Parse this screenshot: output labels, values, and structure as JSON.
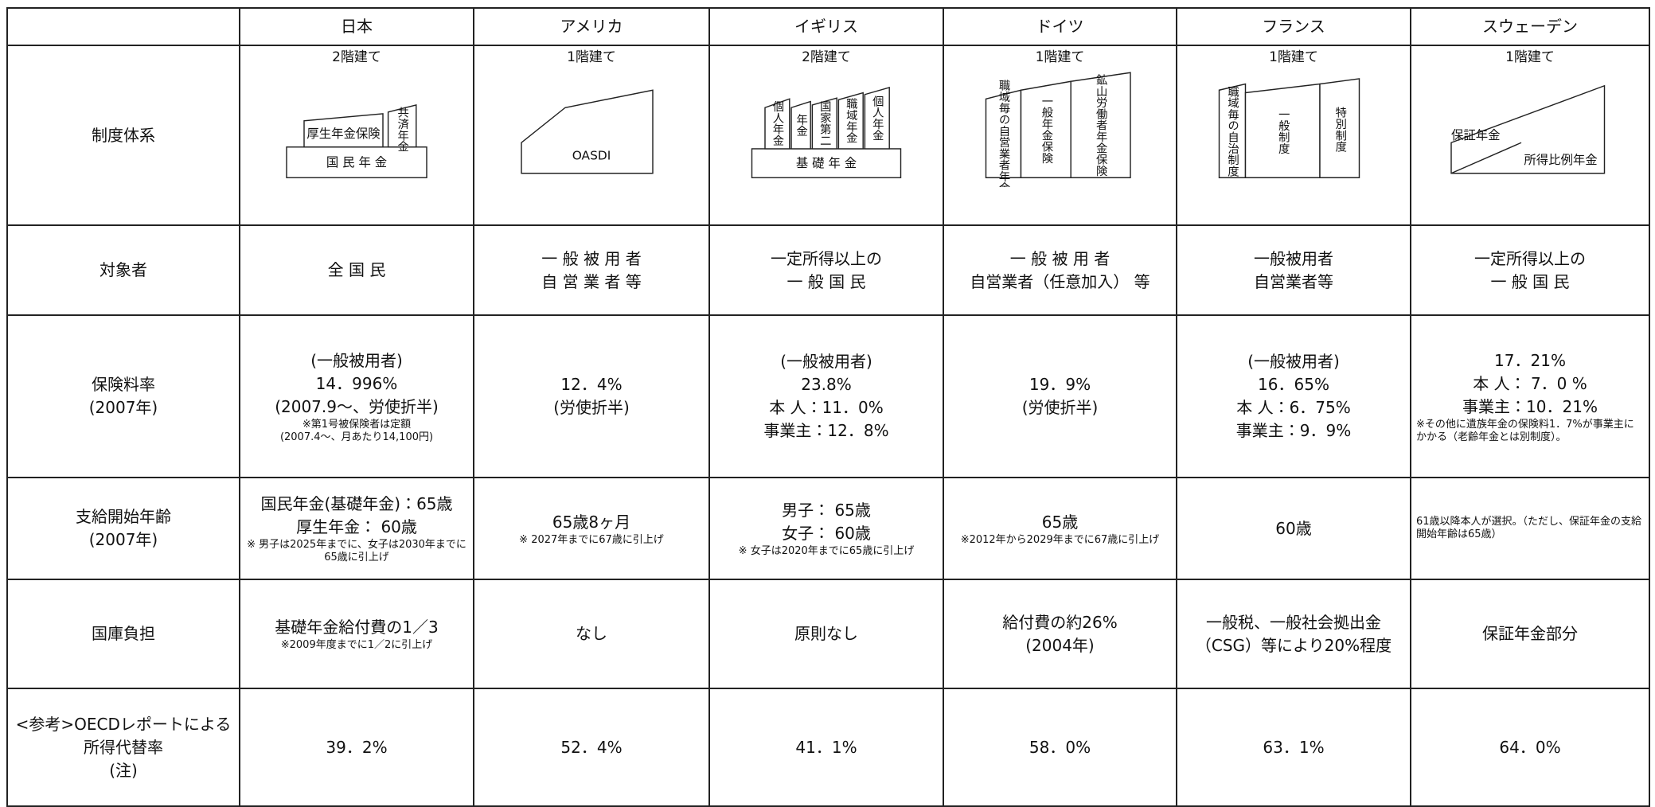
{
  "table": {
    "columns": [
      "日本",
      "アメリカ",
      "イギリス",
      "ドイツ",
      "フランス",
      "スウェーデン"
    ],
    "rows": [
      {
        "label": [
          "制度体系"
        ],
        "cells": [
          {
            "stories": "2階建て",
            "labels": [
              "国 民 年 金",
              "厚生年金保険",
              "共済年金"
            ]
          },
          {
            "stories": "1階建て",
            "labels": [
              "OASDI"
            ]
          },
          {
            "stories": "2階建て",
            "labels": [
              "基 礎 年 金",
              "個人年金",
              "年金",
              "国家第二",
              "職域年金",
              "個人年金"
            ]
          },
          {
            "stories": "1階建て",
            "labels": [
              "職域毎の自営業者年金",
              "一般年金保険",
              "鉱山労働者年金保険"
            ]
          },
          {
            "stories": "1階建て",
            "labels": [
              "職域毎の自治制度",
              "一般制度",
              "特別制度"
            ]
          },
          {
            "stories": "1階建て",
            "labels": [
              "保証年金",
              "所得比例年金"
            ]
          }
        ]
      },
      {
        "label": [
          "対象者"
        ],
        "cells": [
          {
            "lines": [
              "全 国 民"
            ]
          },
          {
            "lines": [
              "一 般 被 用 者",
              "自 営 業 者 等"
            ]
          },
          {
            "lines": [
              "一定所得以上の",
              "一 般 国 民"
            ]
          },
          {
            "lines": [
              "一 般 被 用 者",
              "自営業者（任意加入） 等"
            ]
          },
          {
            "lines": [
              "一般被用者",
              "自営業者等"
            ]
          },
          {
            "lines": [
              "一定所得以上の",
              "一 般 国 民"
            ]
          }
        ]
      },
      {
        "label": [
          "保険料率",
          "(2007年)"
        ],
        "cells": [
          {
            "lines": [
              "(一般被用者)",
              "14．996%",
              "(2007.9～、労使折半)"
            ],
            "notes": [
              "※第1号被保険者は定額",
              "(2007.4～、月あたり14,100円)"
            ]
          },
          {
            "lines": [
              "12．4%",
              "(労使折半)"
            ]
          },
          {
            "lines": [
              "(一般被用者)",
              "23.8%",
              "本 人：11．0%",
              "事業主：12．8%"
            ]
          },
          {
            "lines": [
              "19．9%",
              "(労使折半)"
            ]
          },
          {
            "lines": [
              "(一般被用者)",
              "16．65%",
              "本 人：6．75%",
              "事業主：9．9%"
            ]
          },
          {
            "lines": [
              "17．21%",
              "本 人： 7．0 %",
              "事業主：10．21%"
            ],
            "notes": [
              "※その他に遺族年金の保険料1．7%が事業主にかかる（老齢年金とは別制度）。"
            ]
          }
        ]
      },
      {
        "label": [
          "支給開始年齢",
          "(2007年)"
        ],
        "cells": [
          {
            "lines": [
              "国民年金(基礎年金)：65歳",
              "厚生年金： 60歳"
            ],
            "notes": [
              "※ 男子は2025年までに、女子は2030年までに65歳に引上げ"
            ]
          },
          {
            "lines": [
              "65歳8ヶ月"
            ],
            "notes": [
              "※ 2027年までに67歳に引上げ"
            ]
          },
          {
            "lines": [
              "男子： 65歳",
              "女子： 60歳"
            ],
            "notes": [
              "※ 女子は2020年までに65歳に引上げ"
            ]
          },
          {
            "lines": [
              "65歳"
            ],
            "notes": [
              "※2012年から2029年までに67歳に引上げ"
            ]
          },
          {
            "lines": [
              "60歳"
            ]
          },
          {
            "lines": [],
            "notes": [
              "61歳以降本人が選択。（ただし、保証年金の支給開始年齢は65歳）"
            ]
          }
        ]
      },
      {
        "label": [
          "国庫負担"
        ],
        "cells": [
          {
            "lines": [
              "基礎年金給付費の1／3"
            ],
            "notes": [
              "※2009年度までに1／2に引上げ"
            ]
          },
          {
            "lines": [
              "なし"
            ]
          },
          {
            "lines": [
              "原則なし"
            ]
          },
          {
            "lines": [
              "給付費の約26%",
              "(2004年)"
            ]
          },
          {
            "lines": [
              "一般税、一般社会拠出金",
              "（CSG）等により20%程度"
            ]
          },
          {
            "lines": [
              "保証年金部分"
            ]
          }
        ]
      },
      {
        "label": [
          "<参考>OECDレポートによる",
          "所得代替率",
          "(注)"
        ],
        "cells": [
          {
            "lines": [
              "39．2%"
            ]
          },
          {
            "lines": [
              "52．4%"
            ]
          },
          {
            "lines": [
              "41．1%"
            ]
          },
          {
            "lines": [
              "58．0%"
            ]
          },
          {
            "lines": [
              "63．1%"
            ]
          },
          {
            "lines": [
              "64．0%"
            ]
          }
        ]
      }
    ]
  }
}
